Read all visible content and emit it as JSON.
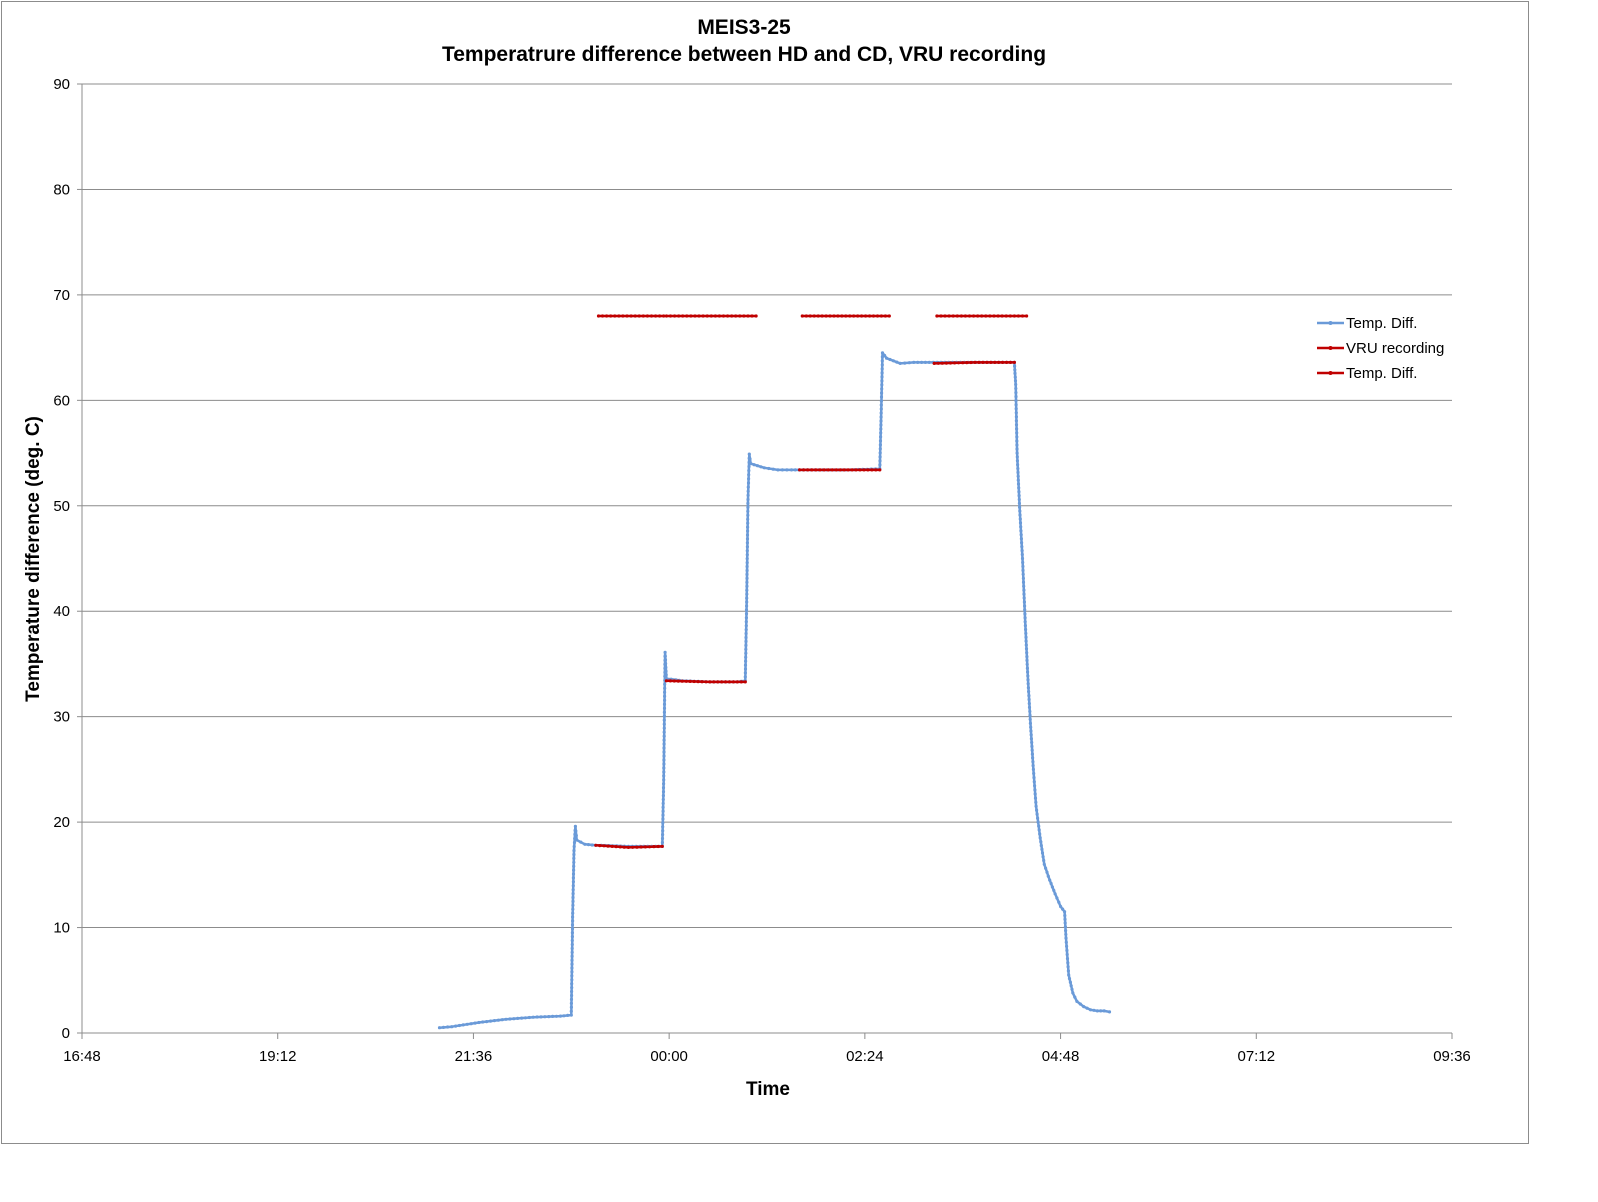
{
  "chart_data": {
    "type": "line",
    "title": "MEIS3-25",
    "subtitle": "Temperatrure difference between HD and CD, VRU recording",
    "xlabel": "Time",
    "ylabel": "Temperature difference (deg. C)",
    "xlim": [
      "16:48",
      "09:36"
    ],
    "ylim": [
      0,
      90
    ],
    "x_ticks": [
      "16:48",
      "19:12",
      "21:36",
      "00:00",
      "02:24",
      "04:48",
      "07:12",
      "09:36"
    ],
    "y_ticks": [
      "0",
      "10",
      "20",
      "30",
      "40",
      "50",
      "60",
      "70",
      "80",
      "90"
    ],
    "grid": true,
    "legend_position": "right",
    "series": [
      {
        "name": "Temp. Diff.",
        "color": "#6a9ad8",
        "style": "line-with-small-markers",
        "points": [
          [
            "21:11",
            0.5
          ],
          [
            "21:20",
            0.6
          ],
          [
            "21:40",
            1.0
          ],
          [
            "22:00",
            1.3
          ],
          [
            "22:20",
            1.5
          ],
          [
            "22:40",
            1.6
          ],
          [
            "22:48",
            1.7
          ],
          [
            "22:49",
            11.0
          ],
          [
            "22:50",
            17.3
          ],
          [
            "22:51",
            19.6
          ],
          [
            "22:52",
            18.3
          ],
          [
            "22:58",
            17.9
          ],
          [
            "23:06",
            17.8
          ],
          [
            "23:10",
            17.8
          ],
          [
            "23:30",
            17.7
          ],
          [
            "23:50",
            17.7
          ],
          [
            "23:55",
            17.7
          ],
          [
            "23:56",
            24.0
          ],
          [
            "23:57",
            36.1
          ],
          [
            "23:58",
            33.6
          ],
          [
            "00:05",
            33.5
          ],
          [
            "00:10",
            33.4
          ],
          [
            "00:30",
            33.3
          ],
          [
            "00:50",
            33.3
          ],
          [
            "00:56",
            33.4
          ],
          [
            "00:57",
            40.5
          ],
          [
            "00:58",
            50.6
          ],
          [
            "00:59",
            54.9
          ],
          [
            "01:00",
            54.0
          ],
          [
            "01:10",
            53.6
          ],
          [
            "01:20",
            53.4
          ],
          [
            "01:30",
            53.4
          ],
          [
            "01:50",
            53.4
          ],
          [
            "02:10",
            53.4
          ],
          [
            "02:35",
            53.5
          ],
          [
            "02:36",
            58.8
          ],
          [
            "02:37",
            64.5
          ],
          [
            "02:40",
            64.0
          ],
          [
            "02:50",
            63.5
          ],
          [
            "03:00",
            63.6
          ],
          [
            "03:20",
            63.6
          ],
          [
            "03:40",
            63.6
          ],
          [
            "04:00",
            63.6
          ],
          [
            "04:14",
            63.6
          ],
          [
            "04:15",
            61.5
          ],
          [
            "04:16",
            55.0
          ],
          [
            "04:18",
            49.5
          ],
          [
            "04:20",
            45.0
          ],
          [
            "04:22",
            39.0
          ],
          [
            "04:24",
            33.5
          ],
          [
            "04:26",
            29.0
          ],
          [
            "04:28",
            25.0
          ],
          [
            "04:30",
            21.5
          ],
          [
            "04:33",
            18.5
          ],
          [
            "04:36",
            16.0
          ],
          [
            "04:40",
            14.5
          ],
          [
            "04:44",
            13.2
          ],
          [
            "04:48",
            12.0
          ],
          [
            "04:51",
            11.5
          ],
          [
            "04:52",
            9.0
          ],
          [
            "04:54",
            5.5
          ],
          [
            "04:57",
            3.8
          ],
          [
            "05:00",
            3.0
          ],
          [
            "05:05",
            2.5
          ],
          [
            "05:10",
            2.2
          ],
          [
            "05:15",
            2.1
          ],
          [
            "05:20",
            2.1
          ],
          [
            "05:24",
            2.0
          ]
        ]
      },
      {
        "name": "VRU recording",
        "color": "#c00000",
        "style": "line-with-small-markers",
        "segments": [
          [
            [
              "23:08",
              68
            ],
            [
              "23:56",
              68
            ]
          ],
          [
            [
              "23:58",
              68
            ],
            [
              "01:04",
              68
            ]
          ],
          [
            [
              "01:38",
              68
            ],
            [
              "02:42",
              68
            ]
          ],
          [
            [
              "03:17",
              68
            ],
            [
              "04:23",
              68
            ]
          ]
        ]
      },
      {
        "name": "Temp. Diff.",
        "color": "#c00000",
        "style": "line-with-small-markers",
        "segments": [
          [
            [
              "23:06",
              17.8
            ],
            [
              "23:30",
              17.6
            ],
            [
              "23:55",
              17.7
            ]
          ],
          [
            [
              "23:58",
              33.4
            ],
            [
              "00:30",
              33.3
            ],
            [
              "00:56",
              33.3
            ]
          ],
          [
            [
              "01:36",
              53.4
            ],
            [
              "02:00",
              53.4
            ],
            [
              "02:35",
              53.4
            ]
          ],
          [
            [
              "03:15",
              63.5
            ],
            [
              "03:45",
              63.6
            ],
            [
              "04:14",
              63.6
            ]
          ]
        ]
      }
    ]
  }
}
